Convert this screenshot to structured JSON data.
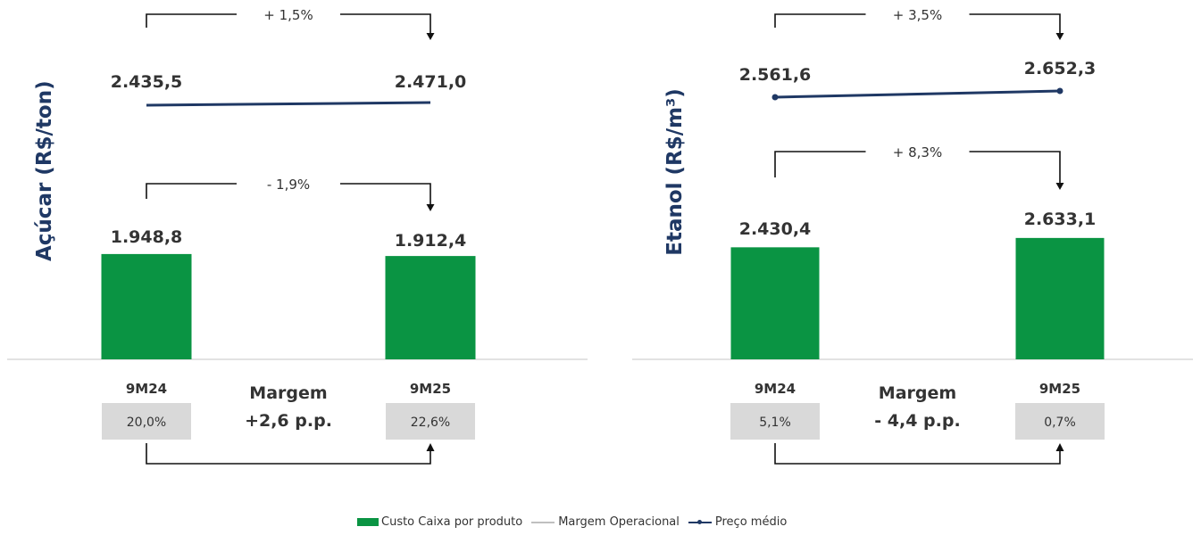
{
  "colors": {
    "bar": "#0a9443",
    "line": "#1f3864",
    "margin_box": "#d9d9d9",
    "bracket": "#111111",
    "text": "#333333"
  },
  "chart_data": [
    {
      "type": "bar",
      "ylabel": "Açúcar (R$/ton)",
      "categories": [
        "9M24",
        "9M25"
      ],
      "series": [
        {
          "name": "Custo Caixa por produto",
          "values": [
            1948.8,
            1912.4
          ],
          "labels": [
            "1.948,8",
            "1.912,4"
          ]
        },
        {
          "name": "Preço médio",
          "values": [
            2435.5,
            2471.0
          ],
          "labels": [
            "2.435,5",
            "2.471,0"
          ]
        },
        {
          "name": "Margem Operacional",
          "values": [
            20.0,
            22.6
          ],
          "labels": [
            "20,0%",
            "22,6%"
          ]
        }
      ],
      "price_change": "+ 1,5%",
      "cost_change": "- 1,9%",
      "margin_title": "Margem",
      "margin_change": "+2,6 p.p."
    },
    {
      "type": "bar",
      "ylabel": "Etanol (R$/m³)",
      "categories": [
        "9M24",
        "9M25"
      ],
      "series": [
        {
          "name": "Custo Caixa por produto",
          "values": [
            2430.4,
            2633.1
          ],
          "labels": [
            "2.430,4",
            "2.633,1"
          ]
        },
        {
          "name": "Preço médio",
          "values": [
            2561.6,
            2652.3
          ],
          "labels": [
            "2.561,6",
            "2.652,3"
          ]
        },
        {
          "name": "Margem Operacional",
          "values": [
            5.1,
            0.7
          ],
          "labels": [
            "5,1%",
            "0,7%"
          ]
        }
      ],
      "price_change": "+ 3,5%",
      "cost_change": "+ 8,3%",
      "margin_title": "Margem",
      "margin_change": "- 4,4 p.p."
    }
  ],
  "legend": {
    "items": [
      {
        "label": "Custo Caixa por produto",
        "icon": "bar-swatch"
      },
      {
        "label": "Margem Operacional",
        "icon": "line-swatch"
      },
      {
        "label": "Preço médio",
        "icon": "line-dot-swatch"
      }
    ]
  }
}
